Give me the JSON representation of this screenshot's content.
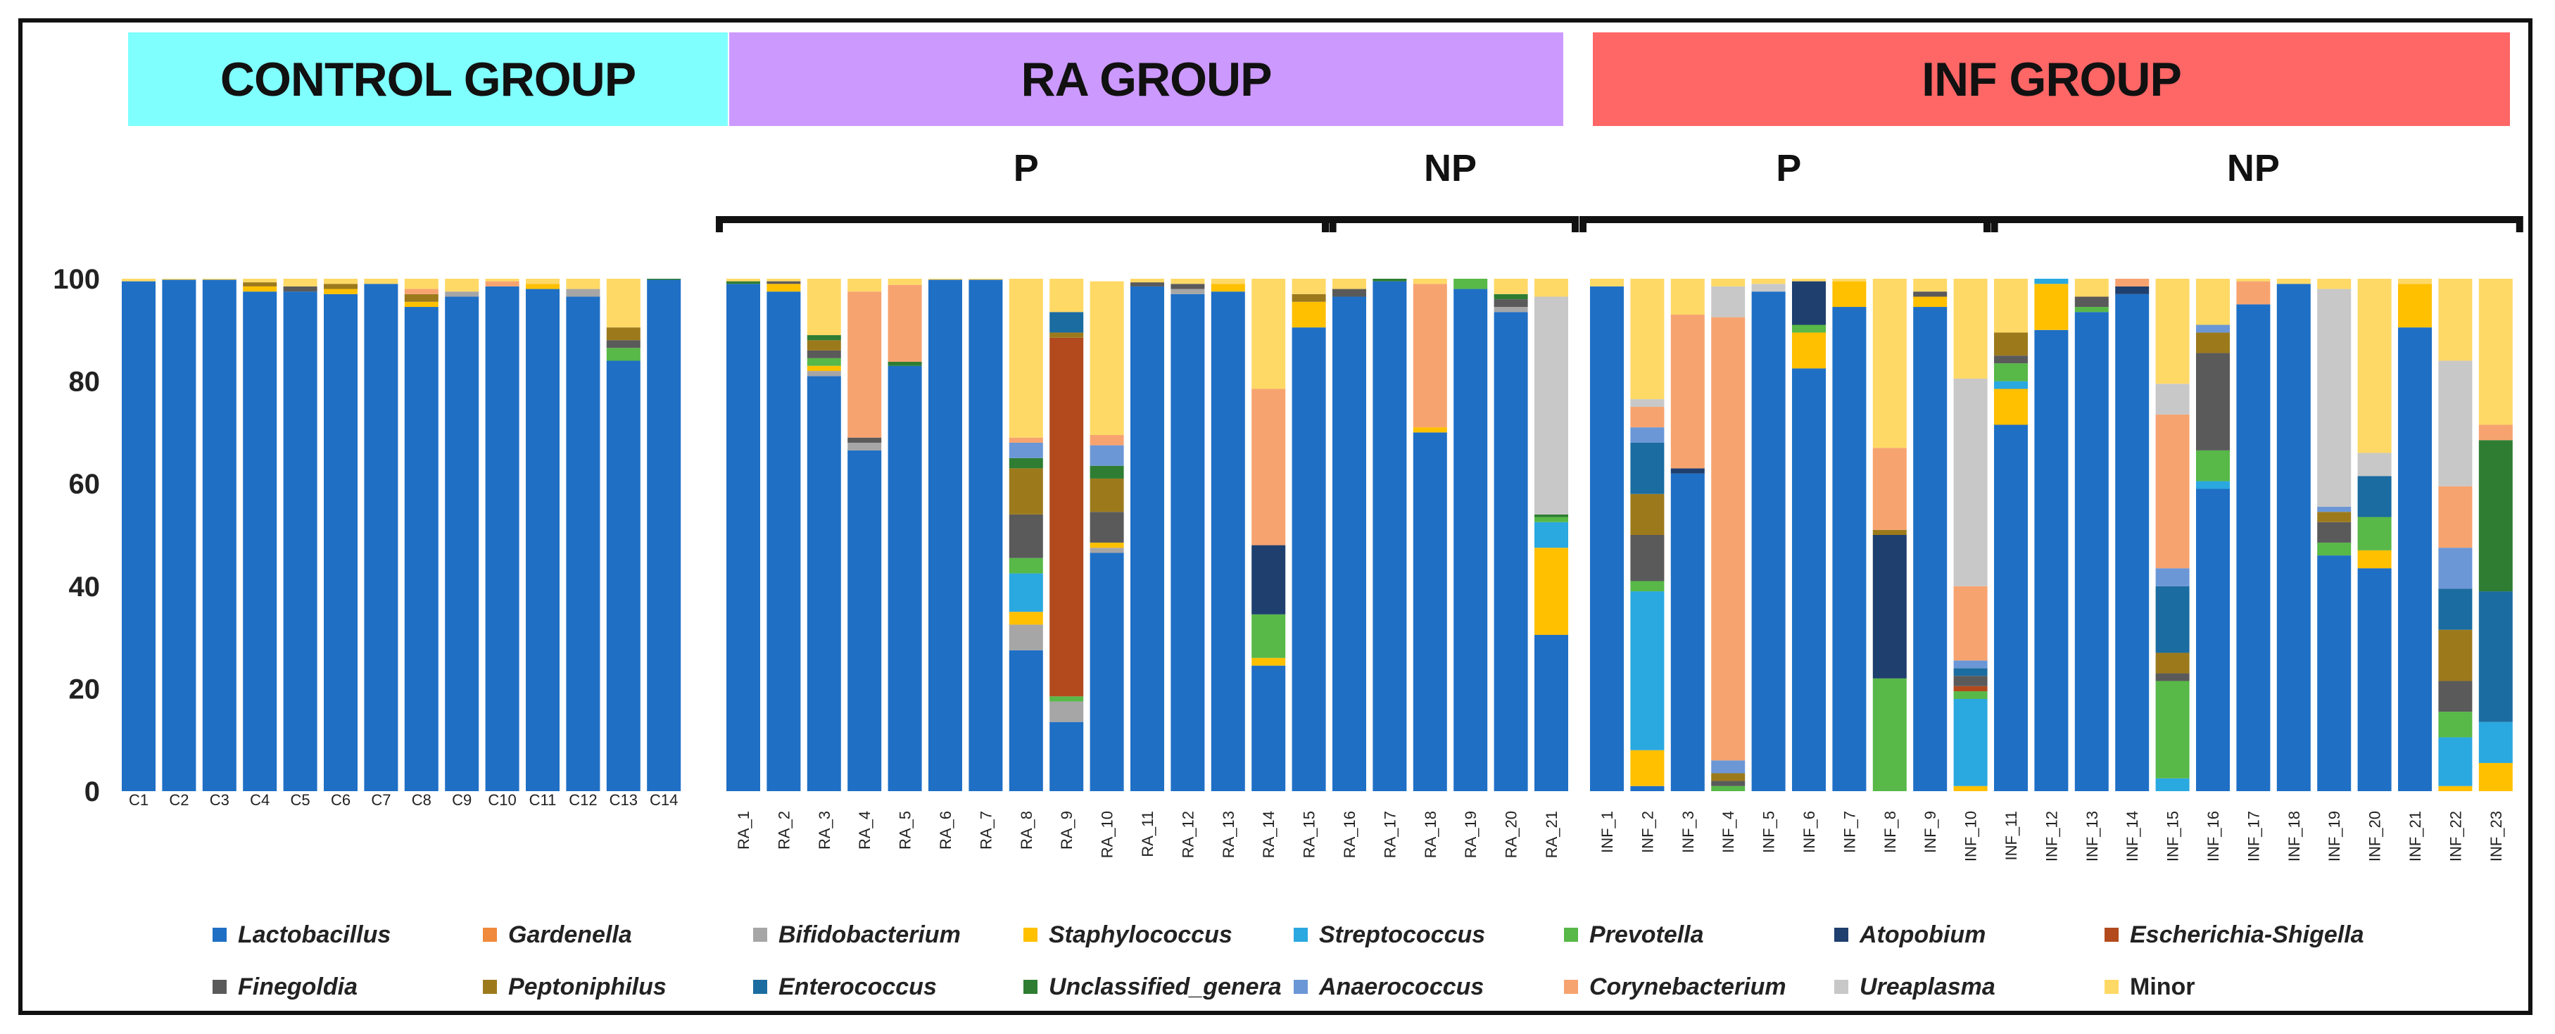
{
  "groups": [
    {
      "label": "CONTROL GROUP",
      "color": "#80FFFF"
    },
    {
      "label": "RA GROUP",
      "color": "#CC99FF"
    },
    {
      "label": "INF GROUP",
      "color": "#FF6666"
    }
  ],
  "subgroups": [
    "P",
    "NP",
    "P",
    "NP"
  ],
  "chart_data": {
    "type": "bar",
    "stacked": true,
    "ylim": [
      0,
      100
    ],
    "yticks": [
      0,
      20,
      40,
      60,
      80,
      100
    ],
    "grid": false,
    "legend_position": "bottom",
    "genera": [
      "Lactobacillus",
      "Gardenella",
      "Bifidobacterium",
      "Staphylococcus",
      "Streptococcus",
      "Prevotella",
      "Atopobium",
      "Escherichia-Shigella",
      "Finegoldia",
      "Peptoniphilus",
      "Enterococcus",
      "Unclassified_genera",
      "Anaerococcus",
      "Corynebacterium",
      "Ureaplasma",
      "Minor"
    ],
    "colors": [
      "#1F6FC5",
      "#F08A3C",
      "#A6A6A6",
      "#FFC000",
      "#2AA8E0",
      "#58B848",
      "#1F3F6E",
      "#B24A1E",
      "#5A5A5A",
      "#9C7A1C",
      "#1B6CA0",
      "#2E7D32",
      "#6C97D6",
      "#F7A370",
      "#C8C8C8",
      "#FFD966"
    ],
    "legend_italic": [
      true,
      true,
      true,
      true,
      true,
      true,
      true,
      true,
      true,
      true,
      true,
      true,
      true,
      true,
      true,
      false
    ],
    "samples": [
      {
        "id": "C1",
        "values": {
          "Lactobacillus": 99.5,
          "Minor": 0.5
        }
      },
      {
        "id": "C2",
        "values": {
          "Lactobacillus": 99.8,
          "Minor": 0.2
        }
      },
      {
        "id": "C3",
        "values": {
          "Lactobacillus": 99.8,
          "Minor": 0.2
        }
      },
      {
        "id": "C4",
        "values": {
          "Lactobacillus": 97.5,
          "Staphylococcus": 1.0,
          "Peptoniphilus": 0.8,
          "Minor": 0.7
        }
      },
      {
        "id": "C5",
        "values": {
          "Lactobacillus": 97.5,
          "Finegoldia": 1.0,
          "Minor": 1.5
        }
      },
      {
        "id": "C6",
        "values": {
          "Lactobacillus": 97.0,
          "Staphylococcus": 1.0,
          "Peptoniphilus": 1.0,
          "Minor": 1.0
        }
      },
      {
        "id": "C7",
        "values": {
          "Lactobacillus": 99.0,
          "Minor": 1.0
        }
      },
      {
        "id": "C8",
        "values": {
          "Lactobacillus": 94.5,
          "Staphylococcus": 1.0,
          "Peptoniphilus": 1.5,
          "Corynebacterium": 1.0,
          "Minor": 2.0
        }
      },
      {
        "id": "C9",
        "values": {
          "Lactobacillus": 96.5,
          "Bifidobacterium": 1.0,
          "Minor": 2.5
        }
      },
      {
        "id": "C10",
        "values": {
          "Lactobacillus": 98.5,
          "Corynebacterium": 1.0,
          "Minor": 0.5
        }
      },
      {
        "id": "C11",
        "values": {
          "Lactobacillus": 98.0,
          "Staphylococcus": 1.0,
          "Minor": 1.0
        }
      },
      {
        "id": "C12",
        "values": {
          "Lactobacillus": 96.5,
          "Bifidobacterium": 1.5,
          "Minor": 2.0
        }
      },
      {
        "id": "C13",
        "values": {
          "Lactobacillus": 84.0,
          "Prevotella": 2.5,
          "Peptoniphilus": 2.5,
          "Finegoldia": 1.5,
          "Minor": 9.5
        }
      },
      {
        "id": "C14",
        "values": {
          "Lactobacillus": 99.8,
          "Unclassified_genera": 0.2
        }
      },
      {
        "id": "RA_1",
        "values": {
          "Lactobacillus": 99.0,
          "Unclassified_genera": 0.5,
          "Minor": 0.5
        }
      },
      {
        "id": "RA_2",
        "values": {
          "Lactobacillus": 97.5,
          "Staphylococcus": 1.5,
          "Finegoldia": 0.5,
          "Minor": 0.5
        }
      },
      {
        "id": "RA_3",
        "values": {
          "Lactobacillus": 81.0,
          "Staphylococcus": 1.0,
          "Bifidobacterium": 1.0,
          "Finegoldia": 1.5,
          "Peptoniphilus": 2.0,
          "Prevotella": 1.5,
          "Unclassified_genera": 1.0,
          "Minor": 11.0
        }
      },
      {
        "id": "RA_4",
        "values": {
          "Lactobacillus": 66.5,
          "Corynebacterium": 28.5,
          "Finegoldia": 1.0,
          "Bifidobacterium": 1.5,
          "Minor": 2.5
        }
      },
      {
        "id": "RA_5",
        "values": {
          "Lactobacillus": 83.0,
          "Corynebacterium": 15.0,
          "Unclassified_genera": 0.8,
          "Minor": 1.2
        }
      },
      {
        "id": "RA_6",
        "values": {
          "Lactobacillus": 99.8,
          "Minor": 0.2
        }
      },
      {
        "id": "RA_7",
        "values": {
          "Lactobacillus": 99.8,
          "Minor": 0.2
        }
      },
      {
        "id": "RA_8",
        "values": {
          "Lactobacillus": 27.5,
          "Bifidobacterium": 5.0,
          "Staphylococcus": 2.5,
          "Streptococcus": 7.5,
          "Prevotella": 3.0,
          "Finegoldia": 8.5,
          "Peptoniphilus": 9.0,
          "Unclassified_genera": 2.0,
          "Anaerococcus": 3.0,
          "Corynebacterium": 1.0,
          "Minor": 31.0
        }
      },
      {
        "id": "RA_9",
        "values": {
          "Lactobacillus": 13.5,
          "Prevotella": 1.0,
          "Peptoniphilus": 1.0,
          "Escherichia-Shigella": 70.0,
          "Enterococcus": 4.0,
          "Bifidobacterium": 4.0,
          "Minor": 6.5
        }
      },
      {
        "id": "RA_10",
        "values": {
          "Lactobacillus": 46.5,
          "Bifidobacterium": 1.0,
          "Staphylococcus": 1.0,
          "Finegoldia": 6.0,
          "Peptoniphilus": 6.5,
          "Unclassified_genera": 2.5,
          "Anaerococcus": 4.0,
          "Corynebacterium": 2.0,
          "Minor": 30.0
        }
      },
      {
        "id": "RA_11",
        "values": {
          "Lactobacillus": 98.5,
          "Finegoldia": 0.8,
          "Minor": 0.7
        }
      },
      {
        "id": "RA_12",
        "values": {
          "Lactobacillus": 97.0,
          "Finegoldia": 1.0,
          "Bifidobacterium": 1.0,
          "Minor": 1.0
        }
      },
      {
        "id": "RA_13",
        "values": {
          "Lactobacillus": 97.5,
          "Staphylococcus": 1.5,
          "Minor": 1.0
        }
      },
      {
        "id": "RA_14",
        "values": {
          "Lactobacillus": 24.5,
          "Corynebacterium": 30.5,
          "Staphylococcus": 1.5,
          "Prevotella": 8.5,
          "Atopobium": 13.5,
          "Minor": 21.5
        }
      },
      {
        "id": "RA_15",
        "values": {
          "Lactobacillus": 90.5,
          "Staphylococcus": 5.0,
          "Peptoniphilus": 1.5,
          "Minor": 3.0
        }
      },
      {
        "id": "RA_16",
        "values": {
          "Lactobacillus": 96.5,
          "Finegoldia": 1.5,
          "Minor": 2.0
        }
      },
      {
        "id": "RA_17",
        "values": {
          "Lactobacillus": 99.5,
          "Unclassified_genera": 0.5
        }
      },
      {
        "id": "RA_18",
        "values": {
          "Lactobacillus": 70.0,
          "Corynebacterium": 28.0,
          "Staphylococcus": 1.0,
          "Minor": 1.0
        }
      },
      {
        "id": "RA_19",
        "values": {
          "Lactobacillus": 98.0,
          "Prevotella": 2.0
        }
      },
      {
        "id": "RA_20",
        "values": {
          "Lactobacillus": 93.5,
          "Bifidobacterium": 1.0,
          "Finegoldia": 1.5,
          "Unclassified_genera": 1.0,
          "Minor": 3.0
        }
      },
      {
        "id": "RA_21",
        "values": {
          "Lactobacillus": 30.5,
          "Ureaplasma": 42.5,
          "Staphylococcus": 17.0,
          "Streptococcus": 5.0,
          "Prevotella": 1.0,
          "Unclassified_genera": 0.5,
          "Minor": 3.5
        }
      },
      {
        "id": "INF_1",
        "values": {
          "Lactobacillus": 98.5,
          "Minor": 1.5
        }
      },
      {
        "id": "INF_2",
        "values": {
          "Lactobacillus": 1.0,
          "Staphylococcus": 7.0,
          "Streptococcus": 31.0,
          "Prevotella": 2.0,
          "Finegoldia": 9.0,
          "Peptoniphilus": 8.0,
          "Enterococcus": 10.0,
          "Anaerococcus": 3.0,
          "Corynebacterium": 4.0,
          "Ureaplasma": 1.5,
          "Minor": 23.5
        }
      },
      {
        "id": "INF_3",
        "values": {
          "Lactobacillus": 62.0,
          "Corynebacterium": 30.0,
          "Atopobium": 1.0,
          "Minor": 7.0
        }
      },
      {
        "id": "INF_4",
        "values": {
          "Corynebacterium": 86.5,
          "Peptoniphilus": 1.5,
          "Prevotella": 1.0,
          "Finegoldia": 1.0,
          "Anaerococcus": 2.5,
          "Ureaplasma": 6.0,
          "Minor": 1.5
        }
      },
      {
        "id": "INF_5",
        "values": {
          "Lactobacillus": 97.5,
          "Ureaplasma": 1.5,
          "Minor": 1.0
        }
      },
      {
        "id": "INF_6",
        "values": {
          "Lactobacillus": 82.5,
          "Staphylococcus": 7.0,
          "Prevotella": 1.5,
          "Atopobium": 8.5,
          "Minor": 0.5
        }
      },
      {
        "id": "INF_7",
        "values": {
          "Lactobacillus": 94.5,
          "Staphylococcus": 5.0,
          "Minor": 0.5
        }
      },
      {
        "id": "INF_8",
        "values": {
          "Corynebacterium": 16.0,
          "Prevotella": 22.0,
          "Atopobium": 28.0,
          "Peptoniphilus": 1.0,
          "Minor": 33.0
        }
      },
      {
        "id": "INF_9",
        "values": {
          "Lactobacillus": 94.5,
          "Finegoldia": 1.0,
          "Staphylococcus": 2.0,
          "Minor": 2.5
        }
      },
      {
        "id": "INF_10",
        "values": {
          "Ureaplasma": 40.5,
          "Staphylococcus": 1.0,
          "Streptococcus": 17.0,
          "Enterococcus": 1.5,
          "Prevotella": 1.5,
          "Finegoldia": 2.0,
          "Escherichia-Shigella": 1.0,
          "Anaerococcus": 1.5,
          "Corynebacterium": 14.5,
          "Minor": 19.5
        }
      },
      {
        "id": "INF_11",
        "values": {
          "Lactobacillus": 71.5,
          "Staphylococcus": 7.0,
          "Streptococcus": 1.5,
          "Prevotella": 3.5,
          "Finegoldia": 1.5,
          "Peptoniphilus": 4.5,
          "Minor": 10.5
        }
      },
      {
        "id": "INF_12",
        "values": {
          "Lactobacillus": 90.0,
          "Staphylococcus": 9.0,
          "Streptococcus": 1.0
        }
      },
      {
        "id": "INF_13",
        "values": {
          "Lactobacillus": 93.5,
          "Prevotella": 1.0,
          "Finegoldia": 2.0,
          "Minor": 3.5
        }
      },
      {
        "id": "INF_14",
        "values": {
          "Lactobacillus": 97.0,
          "Atopobium": 1.5,
          "Corynebacterium": 1.5
        }
      },
      {
        "id": "INF_15",
        "values": {
          "Corynebacterium": 30.0,
          "Streptococcus": 2.5,
          "Prevotella": 19.0,
          "Enterococcus": 13.0,
          "Anaerococcus": 3.5,
          "Peptoniphilus": 4.0,
          "Finegoldia": 1.5,
          "Streptococcus_hi": 0,
          "Ureaplasma": 6.0,
          "Minor": 20.5
        }
      },
      {
        "id": "INF_16",
        "values": {
          "Lactobacillus": 59.0,
          "Streptococcus": 1.5,
          "Prevotella": 6.0,
          "Finegoldia": 19.0,
          "Peptoniphilus": 4.0,
          "Anaerococcus": 1.5,
          "Minor": 9.0
        }
      },
      {
        "id": "INF_17",
        "values": {
          "Lactobacillus": 95.0,
          "Corynebacterium": 4.5,
          "Minor": 0.5
        }
      },
      {
        "id": "INF_18",
        "values": {
          "Lactobacillus": 99.0,
          "Minor": 1.0
        }
      },
      {
        "id": "INF_19",
        "values": {
          "Lactobacillus": 46.0,
          "Ureaplasma": 42.5,
          "Prevotella": 2.5,
          "Finegoldia": 4.0,
          "Peptoniphilus": 2.0,
          "Anaerococcus": 1.0,
          "Minor": 2.0
        }
      },
      {
        "id": "INF_20",
        "values": {
          "Lactobacillus": 43.5,
          "Staphylococcus": 3.5,
          "Prevotella": 6.5,
          "Enterococcus": 8.0,
          "Ureaplasma": 4.5,
          "Minor": 34.0
        }
      },
      {
        "id": "INF_21",
        "values": {
          "Lactobacillus": 90.5,
          "Staphylococcus": 8.5,
          "Minor": 1.0
        }
      },
      {
        "id": "INF_22",
        "values": {
          "Ureaplasma": 24.5,
          "Staphylococcus": 1.0,
          "Streptococcus": 9.5,
          "Prevotella": 5.0,
          "Finegoldia": 6.0,
          "Peptoniphilus": 10.0,
          "Enterococcus": 8.0,
          "Anaerococcus": 8.0,
          "Corynebacterium": 12.0,
          "Minor": 16.0
        }
      },
      {
        "id": "INF_23",
        "values": {
          "Staphylococcus": 5.5,
          "Streptococcus": 8.0,
          "Enterococcus": 25.5,
          "Unclassified_genera": 29.5,
          "Corynebacterium": 3.0,
          "Minor": 28.5
        }
      }
    ]
  }
}
